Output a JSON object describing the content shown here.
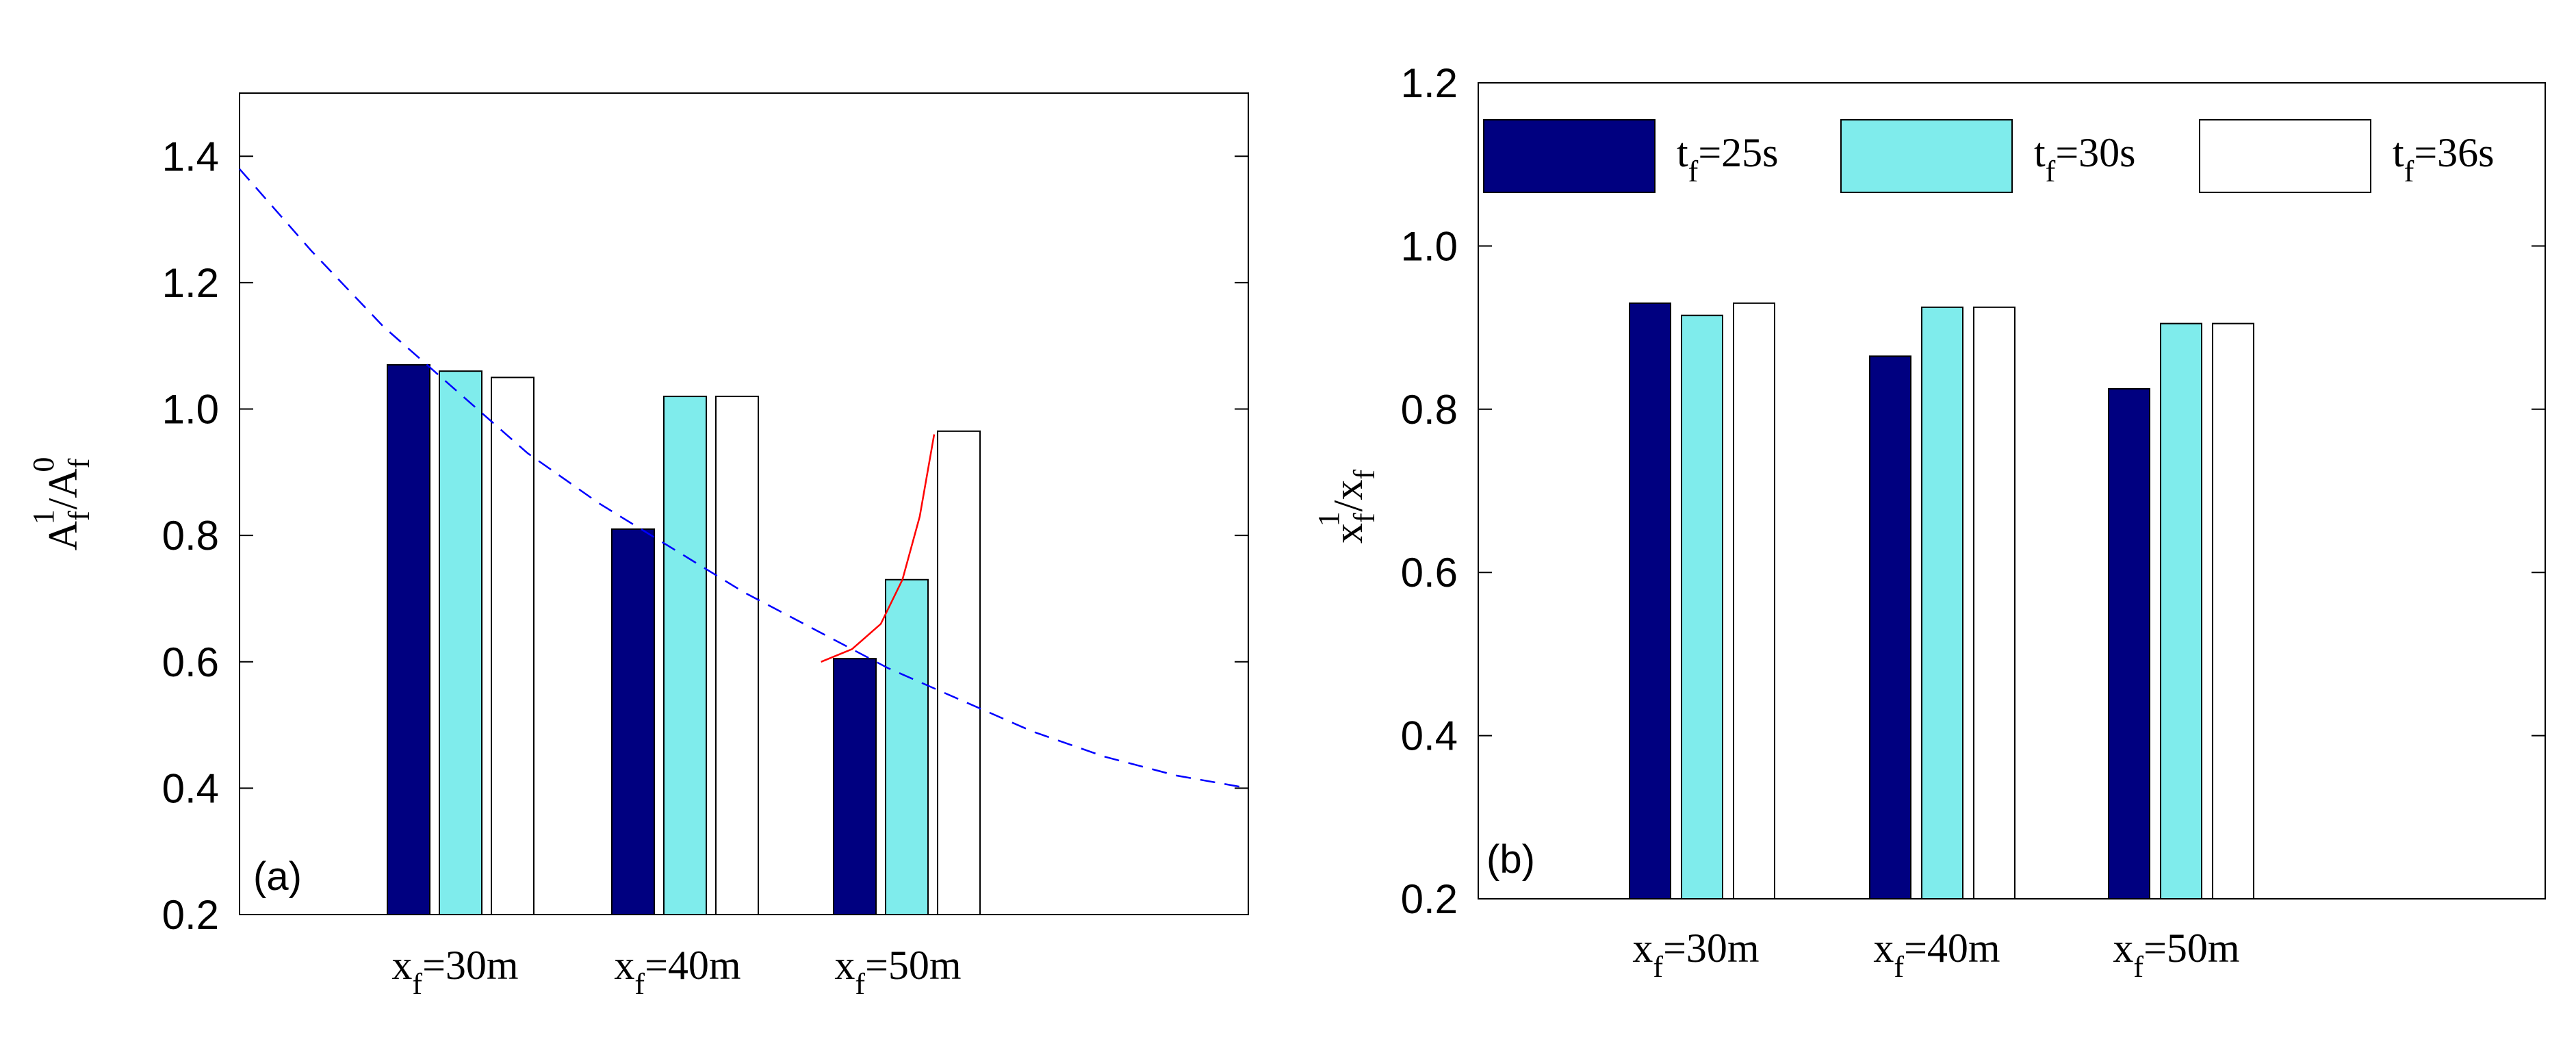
{
  "chart_data": [
    {
      "type": "bar",
      "panel_label": "(a)",
      "ylabel": {
        "main": "A",
        "sub": "f",
        "sup": "1",
        "sep": "/",
        "main2": "A",
        "sub2": "f",
        "sup2": "0"
      },
      "ylim": [
        0.2,
        1.5
      ],
      "yticks": [
        0.2,
        0.4,
        0.6,
        0.8,
        1.0,
        1.2,
        1.4
      ],
      "ytick_labels": [
        "0.2",
        "0.4",
        "0.6",
        "0.8",
        "1.0",
        "1.2",
        "1.4"
      ],
      "categories": [
        {
          "main": "x",
          "sub": "f",
          "rest": "=30m"
        },
        {
          "main": "x",
          "sub": "f",
          "rest": "=40m"
        },
        {
          "main": "x",
          "sub": "f",
          "rest": "=50m"
        }
      ],
      "series": [
        {
          "name": "t_f=25s",
          "color": "#000080",
          "values": [
            1.07,
            0.81,
            0.605
          ]
        },
        {
          "name": "t_f=30s",
          "color": "#7fecec",
          "values": [
            1.06,
            1.02,
            0.73
          ]
        },
        {
          "name": "t_f=36s",
          "color": "#ffffff",
          "values": [
            1.05,
            1.02,
            0.965
          ]
        }
      ],
      "lines": [
        {
          "name": "dashed-decay-curve",
          "color": "#0000ff",
          "style": "dashed",
          "points": [
            [
              0.0,
              1.38
            ],
            [
              0.5,
              1.25
            ],
            [
              1.0,
              1.13
            ],
            [
              1.5,
              1.03
            ],
            [
              2.0,
              0.93
            ],
            [
              2.5,
              0.85
            ],
            [
              3.0,
              0.78
            ],
            [
              3.5,
              0.71
            ],
            [
              4.0,
              0.65
            ],
            [
              4.5,
              0.59
            ],
            [
              5.0,
              0.54
            ],
            [
              5.5,
              0.49
            ],
            [
              6.0,
              0.45
            ],
            [
              6.5,
              0.42
            ],
            [
              7.0,
              0.4
            ]
          ]
        },
        {
          "name": "red-trend-curve",
          "color": "#ff0000",
          "style": "solid",
          "points": [
            [
              4.035,
              0.6
            ],
            [
              4.25,
              0.62
            ],
            [
              4.45,
              0.66
            ],
            [
              4.6,
              0.73
            ],
            [
              4.72,
              0.83
            ],
            [
              4.82,
              0.96
            ]
          ]
        }
      ]
    },
    {
      "type": "bar",
      "panel_label": "(b)",
      "ylabel": {
        "main": "x",
        "sub": "f",
        "sup": "1",
        "sep": "/",
        "main2": "x",
        "sub2": "f",
        "sup2": ""
      },
      "ylim": [
        0.2,
        1.2
      ],
      "yticks": [
        0.2,
        0.4,
        0.6,
        0.8,
        1.0,
        1.2
      ],
      "ytick_labels": [
        "0.2",
        "0.4",
        "0.6",
        "0.8",
        "1.0",
        "1.2"
      ],
      "categories": [
        {
          "main": "x",
          "sub": "f",
          "rest": "=30m"
        },
        {
          "main": "x",
          "sub": "f",
          "rest": "=40m"
        },
        {
          "main": "x",
          "sub": "f",
          "rest": "=50m"
        }
      ],
      "series": [
        {
          "name": "t_f=25s",
          "color": "#000080",
          "values": [
            0.93,
            0.865,
            0.825
          ]
        },
        {
          "name": "t_f=30s",
          "color": "#7fecec",
          "values": [
            0.915,
            0.925,
            0.905
          ]
        },
        {
          "name": "t_f=36s",
          "color": "#ffffff",
          "values": [
            0.93,
            0.925,
            0.905
          ]
        }
      ],
      "legend": {
        "placement": "top",
        "entries": [
          {
            "main": "t",
            "sub": "f",
            "rest": "=25s",
            "color": "#000080"
          },
          {
            "main": "t",
            "sub": "f",
            "rest": "=30s",
            "color": "#7fecec"
          },
          {
            "main": "t",
            "sub": "f",
            "rest": "=36s",
            "color": "#ffffff"
          }
        ]
      }
    }
  ]
}
